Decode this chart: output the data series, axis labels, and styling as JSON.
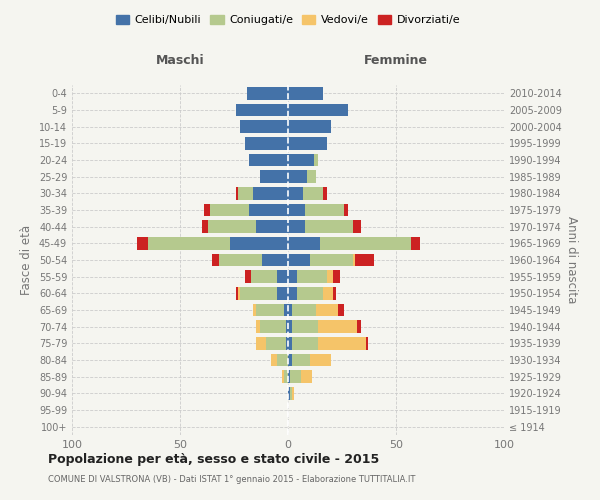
{
  "age_groups": [
    "100+",
    "95-99",
    "90-94",
    "85-89",
    "80-84",
    "75-79",
    "70-74",
    "65-69",
    "60-64",
    "55-59",
    "50-54",
    "45-49",
    "40-44",
    "35-39",
    "30-34",
    "25-29",
    "20-24",
    "15-19",
    "10-14",
    "5-9",
    "0-4"
  ],
  "birth_years": [
    "≤ 1914",
    "1915-1919",
    "1920-1924",
    "1925-1929",
    "1930-1934",
    "1935-1939",
    "1940-1944",
    "1945-1949",
    "1950-1954",
    "1955-1959",
    "1960-1964",
    "1965-1969",
    "1970-1974",
    "1975-1979",
    "1980-1984",
    "1985-1989",
    "1990-1994",
    "1995-1999",
    "2000-2004",
    "2005-2009",
    "2010-2014"
  ],
  "male": {
    "celibi": [
      0,
      0,
      0,
      0,
      0,
      1,
      1,
      2,
      5,
      5,
      12,
      27,
      15,
      18,
      16,
      13,
      18,
      20,
      22,
      24,
      19
    ],
    "coniugati": [
      0,
      0,
      0,
      2,
      5,
      9,
      12,
      13,
      17,
      12,
      20,
      38,
      22,
      18,
      7,
      0,
      0,
      0,
      0,
      0,
      0
    ],
    "vedovi": [
      0,
      0,
      0,
      1,
      3,
      5,
      2,
      1,
      1,
      0,
      0,
      0,
      0,
      0,
      0,
      0,
      0,
      0,
      0,
      0,
      0
    ],
    "divorziati": [
      0,
      0,
      0,
      0,
      0,
      0,
      0,
      0,
      1,
      3,
      3,
      5,
      3,
      3,
      1,
      0,
      0,
      0,
      0,
      0,
      0
    ]
  },
  "female": {
    "nubili": [
      0,
      0,
      1,
      1,
      2,
      2,
      2,
      2,
      4,
      4,
      10,
      15,
      8,
      8,
      7,
      9,
      12,
      18,
      20,
      28,
      16
    ],
    "coniugate": [
      0,
      0,
      1,
      5,
      8,
      12,
      12,
      11,
      12,
      14,
      20,
      42,
      22,
      18,
      9,
      4,
      2,
      0,
      0,
      0,
      0
    ],
    "vedove": [
      0,
      0,
      1,
      5,
      10,
      22,
      18,
      10,
      5,
      3,
      1,
      0,
      0,
      0,
      0,
      0,
      0,
      0,
      0,
      0,
      0
    ],
    "divorziate": [
      0,
      0,
      0,
      0,
      0,
      1,
      2,
      3,
      1,
      3,
      9,
      4,
      4,
      2,
      2,
      0,
      0,
      0,
      0,
      0,
      0
    ]
  },
  "colors": {
    "celibi": "#4472a8",
    "coniugati": "#b5c98e",
    "vedovi": "#f5c469",
    "divorziati": "#cc2222"
  },
  "xlim": 100,
  "title": "Popolazione per età, sesso e stato civile - 2015",
  "subtitle": "COMUNE DI VALSTRONA (VB) - Dati ISTAT 1° gennaio 2015 - Elaborazione TUTTITALIA.IT",
  "ylabel_left": "Fasce di età",
  "ylabel_right": "Anni di nascita",
  "legend_labels": [
    "Celibi/Nubili",
    "Coniugati/e",
    "Vedovi/e",
    "Divorziati/e"
  ],
  "maschi_label": "Maschi",
  "femmine_label": "Femmine",
  "background_color": "#f5f5f0"
}
